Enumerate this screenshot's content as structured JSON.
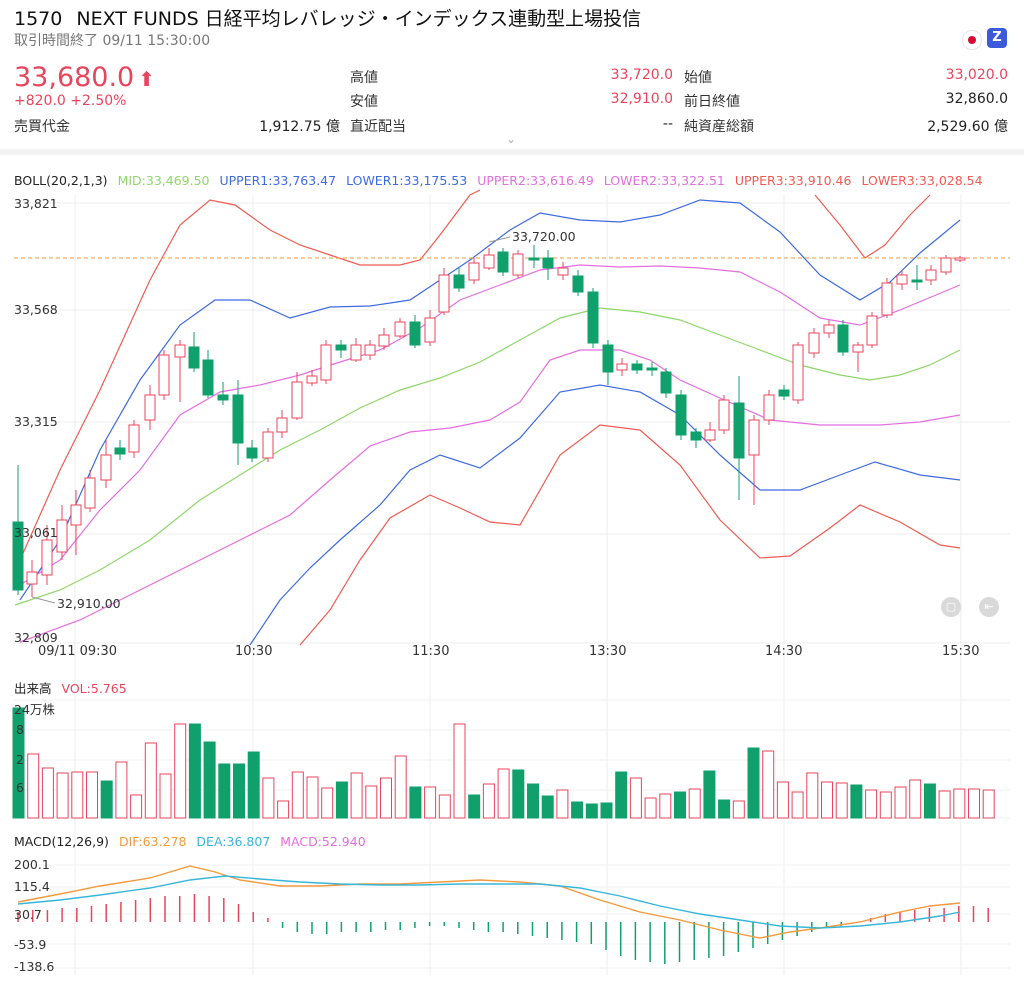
{
  "header": {
    "code": "1570",
    "name": "NEXT FUNDS 日経平均レバレッジ・インデックス連動型上場投信",
    "status": "取引時間終了 09/11 15:30:00",
    "flag_icon": "japan-flag-icon",
    "badge_label": "Z"
  },
  "quote": {
    "price": "33,680.0",
    "arrow": "⬆",
    "change": "+820.0  +2.50%",
    "trading_value_label": "売買代金",
    "trading_value": "1,912.75 億",
    "high_label": "高値",
    "high": "33,720.0",
    "low_label": "安値",
    "low": "32,910.0",
    "dividend_label": "直近配当",
    "dividend": "--",
    "open_label": "始値",
    "open": "33,020.0",
    "prev_close_label": "前日終値",
    "prev_close": "32,860.0",
    "nav_label": "純資産総額",
    "nav": "2,529.60 億"
  },
  "boll": {
    "title": "BOLL(20,2,1,3)",
    "mid": "MID:33,469.50",
    "upper1": "UPPER1:33,763.47",
    "lower1": "LOWER1:33,175.53",
    "upper2": "UPPER2:33,616.49",
    "lower2": "LOWER2:33,322.51",
    "upper3": "UPPER3:33,910.46",
    "lower3": "LOWER3:33,028.54",
    "y_ticks": [
      "33,821",
      "33,568",
      "33,315",
      "33,061",
      "32,809"
    ],
    "x_ticks": [
      "09/11 09:30",
      "10:30",
      "11:30",
      "13:30",
      "14:30",
      "15:30"
    ],
    "high_annotation": "33,720.00",
    "low_annotation": "32,910.00"
  },
  "volume": {
    "title": "出来高",
    "vol": "VOL:5.765",
    "unit": "24万株",
    "ticks": [
      "8",
      "2",
      "6"
    ]
  },
  "macd": {
    "title": "MACD(12,26,9)",
    "dif": "DIF:63.278",
    "dea": "DEA:36.807",
    "macd": "MACD:52.940",
    "y_ticks": [
      "200.1",
      "115.4",
      "30.7",
      "-53.9",
      "-138.6"
    ]
  },
  "colors": {
    "up": "#e8455c",
    "down": "#0fa06b",
    "mid": "#8fd66a",
    "band1": "#3e6be0",
    "band2": "#e46ee0",
    "band3": "#ef5b52",
    "dif": "#f29a3d",
    "dea": "#38b6d8",
    "hist": "#e8455c"
  },
  "chart_data": [
    {
      "type": "candlestick",
      "title": "BOLL(20,2,1,3)",
      "x": [
        "09:30",
        "09:35",
        "09:40",
        "09:45",
        "09:50",
        "09:55",
        "10:00",
        "10:05",
        "10:10",
        "10:15",
        "10:20",
        "10:25",
        "10:30",
        "10:35",
        "10:40",
        "10:45",
        "10:50",
        "10:55",
        "11:00",
        "11:05",
        "11:10",
        "11:15",
        "11:20",
        "11:25",
        "11:30",
        "11:35",
        "11:40",
        "11:45",
        "11:50",
        "11:55",
        "12:30",
        "12:35",
        "12:40",
        "12:45",
        "12:50",
        "12:55",
        "13:00",
        "13:05",
        "13:10",
        "13:15",
        "13:20",
        "13:25",
        "13:30",
        "13:35",
        "13:40",
        "13:45",
        "13:50",
        "13:55",
        "14:00",
        "14:05",
        "14:10",
        "14:15",
        "14:20",
        "14:25",
        "14:30",
        "14:35",
        "14:40",
        "14:45",
        "14:50",
        "14:55",
        "15:00",
        "15:05",
        "15:10",
        "15:15",
        "15:20",
        "15:25",
        "15:30"
      ],
      "ylim": [
        32809,
        33821
      ],
      "series": [
        {
          "name": "MID",
          "last": 33469.5
        },
        {
          "name": "UPPER1",
          "last": 33763.47
        },
        {
          "name": "LOWER1",
          "last": 33175.53
        },
        {
          "name": "UPPER2",
          "last": 33616.49
        },
        {
          "name": "LOWER2",
          "last": 33322.51
        },
        {
          "name": "UPPER3",
          "last": 33910.46
        },
        {
          "name": "LOWER3",
          "last": 33028.54
        }
      ],
      "high": 33720.0,
      "low": 32910.0
    },
    {
      "type": "bar",
      "title": "出来高",
      "series": [
        {
          "name": "VOL",
          "last": 5.765
        }
      ]
    },
    {
      "type": "line",
      "title": "MACD(12,26,9)",
      "ylim": [
        -138.6,
        200.1
      ],
      "series": [
        {
          "name": "DIF",
          "last": 63.278
        },
        {
          "name": "DEA",
          "last": 36.807
        },
        {
          "name": "MACD",
          "last": 52.94
        }
      ]
    }
  ]
}
